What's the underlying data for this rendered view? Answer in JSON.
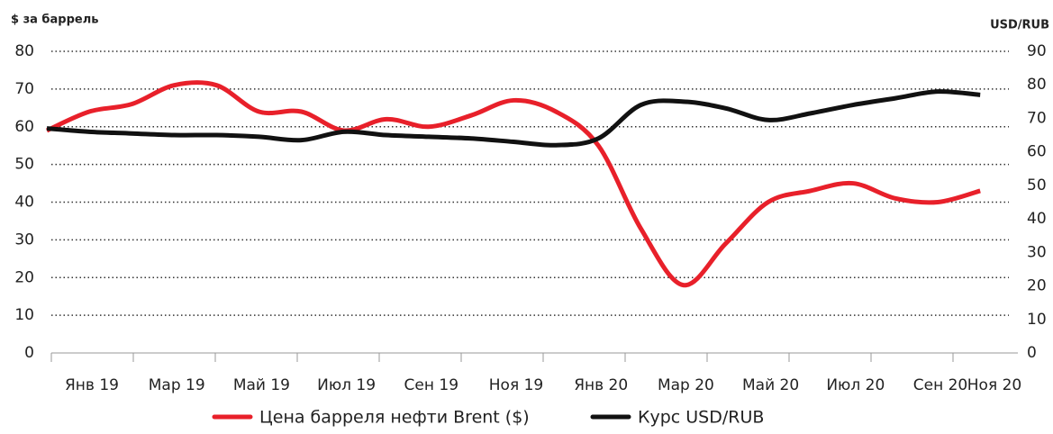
{
  "chart_data": {
    "type": "line",
    "y_label": "$ за баррель",
    "y2_label": "USD/RUB",
    "categories": [
      "Янв 19",
      null,
      "Мар 19",
      null,
      "Май 19",
      null,
      "Июл 19",
      null,
      "Сен 19",
      null,
      "Ноя 19",
      null,
      "Янв 20",
      null,
      "Мар 20",
      null,
      "Май 20",
      null,
      "Июл 20",
      null,
      "Сен 20",
      null,
      "Ноя 20"
    ],
    "series": [
      {
        "name": "Цена барреля нефти Brent ($)",
        "color": "#e8202a",
        "axis": "y",
        "values": [
          59,
          64,
          66,
          71,
          71,
          64,
          64,
          59,
          62,
          60,
          63,
          67,
          64,
          55,
          33,
          18,
          29,
          40,
          43,
          45,
          41,
          40,
          43
        ]
      },
      {
        "name": "Курс USD/RUB",
        "color": "#111111",
        "axis": "y2",
        "values": [
          67,
          66,
          65.5,
          65,
          65,
          64.5,
          63.5,
          66,
          65,
          64.5,
          64,
          63,
          62,
          64,
          74,
          75,
          73,
          69.5,
          71.5,
          74,
          76,
          78,
          77
        ]
      }
    ],
    "ylim": [
      0,
      80
    ],
    "yticks": [
      0,
      10,
      20,
      30,
      40,
      50,
      60,
      70,
      80
    ],
    "y2lim": [
      0,
      90
    ],
    "y2ticks": [
      0,
      10,
      20,
      30,
      40,
      50,
      60,
      70,
      80,
      90
    ],
    "grid": true,
    "legend": "bottom"
  }
}
